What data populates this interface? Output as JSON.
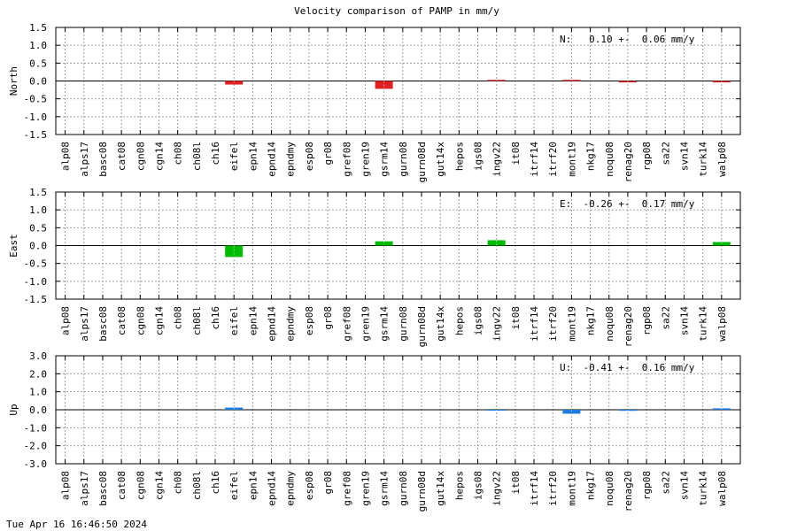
{
  "title": "Velocity comparison of PAMP in mm/y",
  "footer": "Tue Apr 16 16:46:50 2024",
  "chart_data": [
    {
      "type": "bar",
      "ylabel": "North",
      "annotation": "N:   0.10 +-  0.06 mm/y",
      "color": "#e02020",
      "ylim": [
        -1.5,
        1.5
      ],
      "yticks": [
        "1.5",
        "1.0",
        "0.5",
        "0.0",
        "-0.5",
        "-1.0",
        "-1.5"
      ],
      "grid": true,
      "categories": [
        "alp08",
        "alps17",
        "basc08",
        "cat08",
        "cgn08",
        "cgn14",
        "ch08",
        "ch08l",
        "ch16",
        "eifel",
        "epn14",
        "epnd14",
        "epndmy",
        "esp08",
        "gr08",
        "gref08",
        "gren19",
        "gsrm14",
        "gurn08",
        "gurn08d",
        "gut14x",
        "hepos",
        "igs08",
        "ingv22",
        "it08",
        "itrf14",
        "itrf20",
        "mont19",
        "nkg17",
        "noqu08",
        "renag20",
        "rgp08",
        "sa22",
        "svn14",
        "turk14",
        "walp08"
      ],
      "values": [
        null,
        null,
        null,
        null,
        null,
        null,
        null,
        null,
        null,
        -0.1,
        null,
        null,
        null,
        null,
        null,
        null,
        null,
        -0.22,
        null,
        null,
        null,
        null,
        null,
        0.03,
        null,
        null,
        null,
        0.03,
        null,
        null,
        -0.04,
        null,
        null,
        null,
        null,
        -0.04
      ]
    },
    {
      "type": "bar",
      "ylabel": "East",
      "annotation": "E:  -0.26 +-  0.17 mm/y",
      "color": "#00bb00",
      "ylim": [
        -1.5,
        1.5
      ],
      "yticks": [
        "1.5",
        "1.0",
        "0.5",
        "0.0",
        "-0.5",
        "-1.0",
        "-1.5"
      ],
      "grid": true,
      "categories": [
        "alp08",
        "alps17",
        "basc08",
        "cat08",
        "cgn08",
        "cgn14",
        "ch08",
        "ch08l",
        "ch16",
        "eifel",
        "epn14",
        "epnd14",
        "epndmy",
        "esp08",
        "gr08",
        "gref08",
        "gren19",
        "gsrm14",
        "gurn08",
        "gurn08d",
        "gut14x",
        "hepos",
        "igs08",
        "ingv22",
        "it08",
        "itrf14",
        "itrf20",
        "mont19",
        "nkg17",
        "noqu08",
        "renag20",
        "rgp08",
        "sa22",
        "svn14",
        "turk14",
        "walp08"
      ],
      "values": [
        null,
        null,
        null,
        null,
        null,
        null,
        null,
        null,
        null,
        -0.32,
        null,
        null,
        null,
        null,
        null,
        null,
        null,
        0.12,
        null,
        null,
        null,
        null,
        null,
        0.15,
        null,
        null,
        null,
        null,
        null,
        null,
        null,
        null,
        null,
        null,
        null,
        0.1
      ]
    },
    {
      "type": "bar",
      "ylabel": "Up",
      "annotation": "U:  -0.41 +-  0.16 mm/y",
      "color": "#1a7be0",
      "ylim": [
        -3.0,
        3.0
      ],
      "yticks": [
        "3.0",
        "2.0",
        "1.0",
        "0.0",
        "-1.0",
        "-2.0",
        "-3.0"
      ],
      "grid": true,
      "categories": [
        "alp08",
        "alps17",
        "basc08",
        "cat08",
        "cgn08",
        "cgn14",
        "ch08",
        "ch08l",
        "ch16",
        "eifel",
        "epn14",
        "epnd14",
        "epndmy",
        "esp08",
        "gr08",
        "gref08",
        "gren19",
        "gsrm14",
        "gurn08",
        "gurn08d",
        "gut14x",
        "hepos",
        "igs08",
        "ingv22",
        "it08",
        "itrf14",
        "itrf20",
        "mont19",
        "nkg17",
        "noqu08",
        "renag20",
        "rgp08",
        "sa22",
        "svn14",
        "turk14",
        "walp08"
      ],
      "values": [
        null,
        null,
        null,
        null,
        null,
        null,
        null,
        null,
        null,
        0.12,
        null,
        null,
        null,
        null,
        null,
        null,
        null,
        null,
        null,
        null,
        null,
        null,
        null,
        -0.05,
        null,
        null,
        null,
        -0.22,
        null,
        null,
        -0.06,
        null,
        null,
        null,
        null,
        0.08
      ]
    }
  ]
}
